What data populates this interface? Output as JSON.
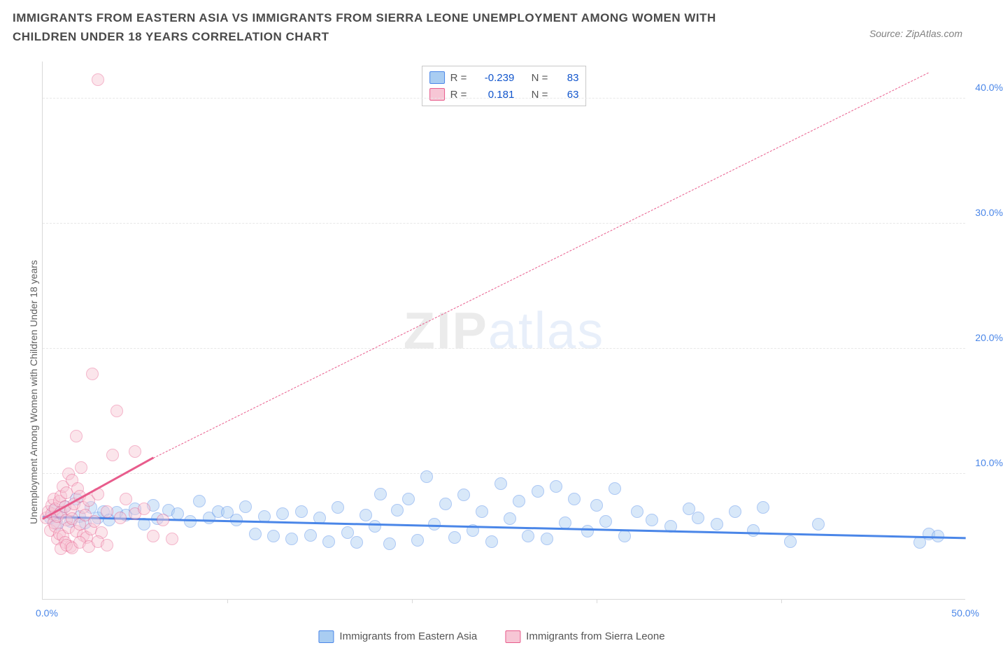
{
  "title": "IMMIGRANTS FROM EASTERN ASIA VS IMMIGRANTS FROM SIERRA LEONE UNEMPLOYMENT AMONG WOMEN WITH CHILDREN UNDER 18 YEARS CORRELATION CHART",
  "source": "Source: ZipAtlas.com",
  "y_axis_label": "Unemployment Among Women with Children Under 18 years",
  "watermark_a": "ZIP",
  "watermark_b": "atlas",
  "chart": {
    "type": "scatter-correlation",
    "xlim": [
      0,
      50
    ],
    "ylim": [
      0,
      43
    ],
    "x_ticks": {
      "0": "0.0%",
      "50": "50.0%"
    },
    "x_minor_ticks": [
      10,
      20,
      30,
      40
    ],
    "y_ticks": [
      {
        "v": 10,
        "label": "10.0%"
      },
      {
        "v": 20,
        "label": "20.0%"
      },
      {
        "v": 30,
        "label": "30.0%"
      },
      {
        "v": 40,
        "label": "40.0%"
      }
    ],
    "grid_color": "#e8e8e8",
    "axis_color": "#d9d9d9",
    "background_color": "#ffffff",
    "point_radius": 9,
    "point_opacity": 0.45,
    "series": [
      {
        "name": "Immigrants from Eastern Asia",
        "color_fill": "#a9cdf2",
        "color_stroke": "#4a86e8",
        "R": "-0.239",
        "N": "83",
        "trend": {
          "x1": 0,
          "y1": 6.5,
          "x2": 50,
          "y2": 4.8,
          "style": "solid",
          "width": 3
        },
        "points": [
          [
            0.4,
            6.5
          ],
          [
            0.6,
            7.1
          ],
          [
            0.8,
            6.0
          ],
          [
            1.0,
            6.8
          ],
          [
            1.2,
            7.4
          ],
          [
            1.5,
            6.2
          ],
          [
            1.8,
            8.0
          ],
          [
            2.0,
            6.6
          ],
          [
            2.3,
            6.1
          ],
          [
            2.6,
            7.3
          ],
          [
            3.0,
            6.5
          ],
          [
            3.3,
            7.0
          ],
          [
            3.6,
            6.3
          ],
          [
            4.0,
            6.9
          ],
          [
            4.5,
            6.7
          ],
          [
            5.0,
            7.2
          ],
          [
            5.5,
            6.0
          ],
          [
            6.0,
            7.5
          ],
          [
            6.2,
            6.4
          ],
          [
            6.8,
            7.1
          ],
          [
            7.3,
            6.8
          ],
          [
            8.0,
            6.2
          ],
          [
            8.5,
            7.8
          ],
          [
            9.0,
            6.5
          ],
          [
            9.5,
            7.0
          ],
          [
            10.0,
            6.9
          ],
          [
            10.5,
            6.3
          ],
          [
            11.0,
            7.4
          ],
          [
            11.5,
            5.2
          ],
          [
            12.0,
            6.6
          ],
          [
            12.5,
            5.0
          ],
          [
            13.0,
            6.8
          ],
          [
            13.5,
            4.8
          ],
          [
            14.0,
            7.0
          ],
          [
            14.5,
            5.1
          ],
          [
            15.0,
            6.5
          ],
          [
            15.5,
            4.6
          ],
          [
            16.0,
            7.3
          ],
          [
            16.5,
            5.3
          ],
          [
            17.0,
            4.5
          ],
          [
            17.5,
            6.7
          ],
          [
            18.0,
            5.8
          ],
          [
            18.3,
            8.4
          ],
          [
            18.8,
            4.4
          ],
          [
            19.2,
            7.1
          ],
          [
            19.8,
            8.0
          ],
          [
            20.3,
            4.7
          ],
          [
            20.8,
            9.8
          ],
          [
            21.2,
            6.0
          ],
          [
            21.8,
            7.6
          ],
          [
            22.3,
            4.9
          ],
          [
            22.8,
            8.3
          ],
          [
            23.3,
            5.5
          ],
          [
            23.8,
            7.0
          ],
          [
            24.3,
            4.6
          ],
          [
            24.8,
            9.2
          ],
          [
            25.3,
            6.4
          ],
          [
            25.8,
            7.8
          ],
          [
            26.3,
            5.0
          ],
          [
            26.8,
            8.6
          ],
          [
            27.3,
            4.8
          ],
          [
            27.8,
            9.0
          ],
          [
            28.3,
            6.1
          ],
          [
            28.8,
            8.0
          ],
          [
            29.5,
            5.4
          ],
          [
            30.0,
            7.5
          ],
          [
            30.5,
            6.2
          ],
          [
            31.0,
            8.8
          ],
          [
            31.5,
            5.0
          ],
          [
            32.2,
            7.0
          ],
          [
            33.0,
            6.3
          ],
          [
            34.0,
            5.8
          ],
          [
            35.0,
            7.2
          ],
          [
            35.5,
            6.5
          ],
          [
            36.5,
            6.0
          ],
          [
            37.5,
            7.0
          ],
          [
            38.5,
            5.5
          ],
          [
            39.0,
            7.3
          ],
          [
            40.5,
            4.6
          ],
          [
            42.0,
            6.0
          ],
          [
            47.5,
            4.5
          ],
          [
            48.0,
            5.2
          ],
          [
            48.5,
            5.0
          ]
        ]
      },
      {
        "name": "Immigrants from Sierra Leone",
        "color_fill": "#f7c6d5",
        "color_stroke": "#e85c8c",
        "R": "0.181",
        "N": "63",
        "trend_solid": {
          "x1": 0,
          "y1": 6.3,
          "x2": 6,
          "y2": 11.2,
          "style": "solid",
          "width": 3
        },
        "trend_dashed": {
          "x1": 6,
          "y1": 11.2,
          "x2": 48,
          "y2": 42.0,
          "style": "dashed",
          "width": 1
        },
        "points": [
          [
            0.2,
            6.5
          ],
          [
            0.3,
            7.0
          ],
          [
            0.4,
            5.5
          ],
          [
            0.5,
            6.8
          ],
          [
            0.5,
            7.5
          ],
          [
            0.6,
            6.1
          ],
          [
            0.6,
            8.0
          ],
          [
            0.7,
            5.8
          ],
          [
            0.7,
            7.2
          ],
          [
            0.8,
            4.8
          ],
          [
            0.8,
            6.6
          ],
          [
            0.9,
            7.8
          ],
          [
            0.9,
            5.2
          ],
          [
            1.0,
            6.9
          ],
          [
            1.0,
            8.2
          ],
          [
            1.1,
            9.0
          ],
          [
            1.1,
            5.0
          ],
          [
            1.2,
            7.4
          ],
          [
            1.2,
            4.5
          ],
          [
            1.3,
            6.3
          ],
          [
            1.3,
            8.5
          ],
          [
            1.4,
            10.0
          ],
          [
            1.4,
            5.7
          ],
          [
            1.5,
            7.1
          ],
          [
            1.5,
            4.2
          ],
          [
            1.6,
            6.4
          ],
          [
            1.6,
            9.5
          ],
          [
            1.7,
            7.6
          ],
          [
            1.8,
            13.0
          ],
          [
            1.8,
            5.4
          ],
          [
            1.9,
            8.8
          ],
          [
            2.0,
            6.0
          ],
          [
            2.0,
            8.2
          ],
          [
            2.1,
            10.5
          ],
          [
            2.2,
            5.1
          ],
          [
            2.2,
            7.3
          ],
          [
            2.3,
            6.7
          ],
          [
            2.4,
            4.9
          ],
          [
            2.5,
            7.9
          ],
          [
            2.6,
            5.6
          ],
          [
            2.7,
            18.0
          ],
          [
            2.8,
            6.2
          ],
          [
            3.0,
            8.4
          ],
          [
            3.2,
            5.3
          ],
          [
            3.5,
            7.0
          ],
          [
            3.8,
            11.5
          ],
          [
            4.0,
            15.0
          ],
          [
            4.2,
            6.5
          ],
          [
            4.5,
            8.0
          ],
          [
            5.0,
            11.8
          ],
          [
            5.0,
            6.8
          ],
          [
            5.5,
            7.2
          ],
          [
            6.0,
            5.0
          ],
          [
            6.5,
            6.3
          ],
          [
            1.0,
            4.0
          ],
          [
            1.3,
            4.3
          ],
          [
            1.6,
            4.1
          ],
          [
            2.0,
            4.5
          ],
          [
            2.5,
            4.2
          ],
          [
            3.0,
            4.6
          ],
          [
            3.5,
            4.3
          ],
          [
            3.0,
            41.5
          ],
          [
            7.0,
            4.8
          ]
        ]
      }
    ]
  },
  "legend_bottom": [
    {
      "label": "Immigrants from Eastern Asia",
      "fill": "#a9cdf2",
      "stroke": "#4a86e8"
    },
    {
      "label": "Immigrants from Sierra Leone",
      "fill": "#f7c6d5",
      "stroke": "#e85c8c"
    }
  ],
  "legend_top_labels": {
    "R": "R =",
    "N": "N ="
  }
}
